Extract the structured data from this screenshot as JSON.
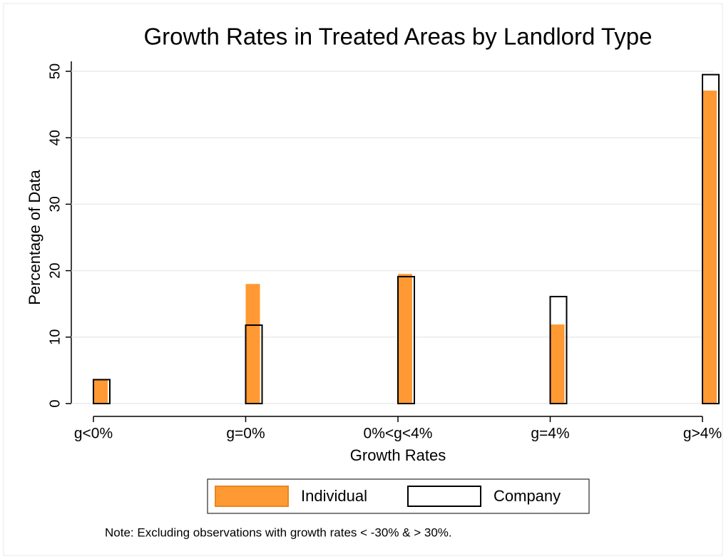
{
  "chart_data": {
    "type": "bar",
    "title": "Growth Rates in Treated Areas by Landlord Type",
    "x_label": "Growth Rates",
    "y_label": "Percentage of Data",
    "note": "Note: Excluding observations with growth rates < -30% & > 30%.",
    "categories": [
      "g<0%",
      "g=0%",
      "0%<g<4%",
      "g=4%",
      "g>4%"
    ],
    "series": [
      {
        "name": "Individual",
        "color": "#ff9933",
        "values": [
          3.6,
          18.0,
          19.5,
          11.9,
          47.1
        ]
      },
      {
        "name": "Company",
        "color": "#000000",
        "values": [
          3.6,
          11.8,
          19.1,
          16.1,
          49.5
        ]
      }
    ],
    "ylim": [
      0,
      50
    ],
    "yticks": [
      0,
      10,
      20,
      30,
      40,
      50
    ],
    "grid": true
  }
}
